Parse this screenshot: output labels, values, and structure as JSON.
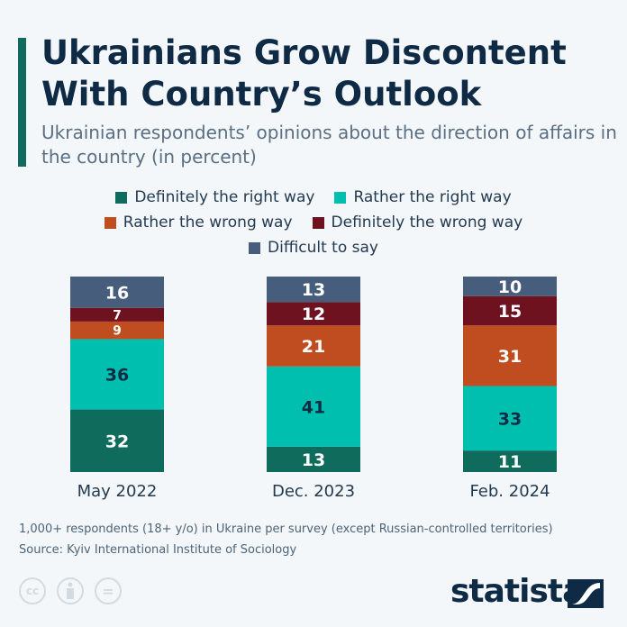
{
  "title": "Ukrainians Grow Discontent With Country’s Outlook",
  "subtitle": "Ukrainian respondents’ opinions about the direction of affairs in the country (in percent)",
  "footnote": "1,000+ respondents (18+ y/o) in Ukraine per survey (except Russian-controlled territories)",
  "source": "Source: Kyiv International Institute of Sociology",
  "license_icons": [
    "cc-icon",
    "attribution-icon",
    "no-derivatives-icon"
  ],
  "license_text": {
    "cc": "cc",
    "nd": "="
  },
  "logo": "statista",
  "chart_data": {
    "type": "bar",
    "stacked": true,
    "categories": [
      "May 2022",
      "Dec. 2023",
      "Feb. 2024"
    ],
    "series": [
      {
        "name": "Definitely the right way",
        "color": "#0f6b5c",
        "label_color": "#ffffff",
        "values": [
          32,
          13,
          11
        ]
      },
      {
        "name": "Rather the right way",
        "color": "#00bfae",
        "label_color": "#0f2a45",
        "values": [
          36,
          41,
          33
        ]
      },
      {
        "name": "Rather the wrong way",
        "color": "#bf4d1f",
        "label_color": "#ffffff",
        "values": [
          9,
          21,
          31
        ]
      },
      {
        "name": "Definitely the wrong way",
        "color": "#6e1220",
        "label_color": "#ffffff",
        "values": [
          7,
          12,
          15
        ]
      },
      {
        "name": "Difficult to say",
        "color": "#465e7c",
        "label_color": "#ffffff",
        "values": [
          16,
          13,
          10
        ]
      }
    ],
    "ylim": [
      0,
      100
    ],
    "legend": "top",
    "grid": false
  }
}
